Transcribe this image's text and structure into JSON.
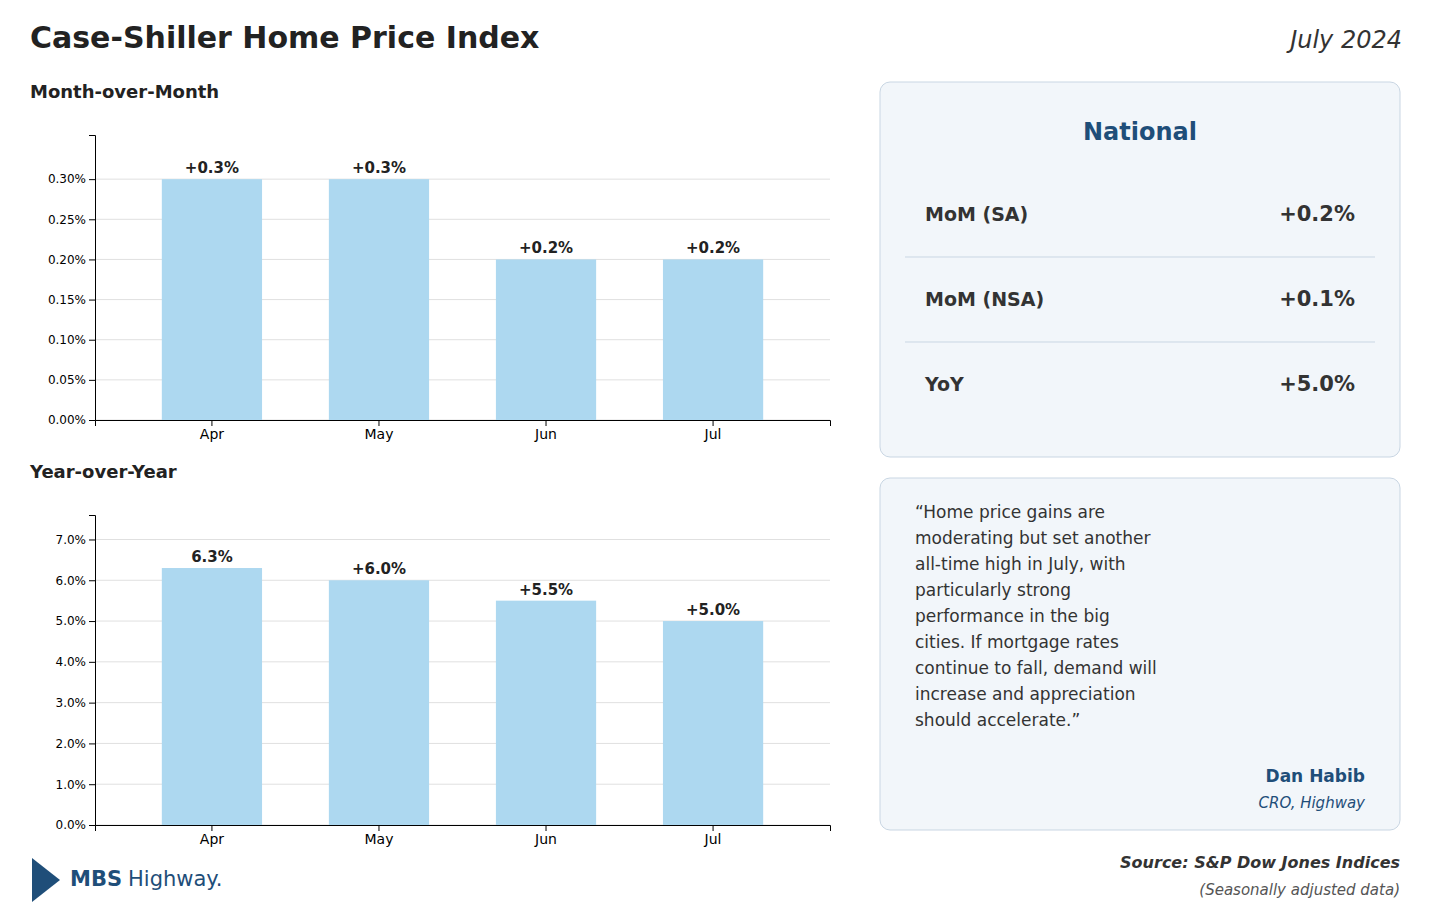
{
  "title": "Case-Shiller Home Price Index",
  "subtitle": "July 2024",
  "annotations": [
    "National",
    "MoM (SA)",
    "+0.2%",
    "MoM (NSA)",
    "+0.1%",
    "YoY",
    "+5.0%",
    "“Home price gains are\nmoderating but set another\nall-time high in July, with\nparticularly strong\nperformance in the big\ncities. If mortgage rates\ncontinue to fall, demand will\nincrease and appreciation\nshould accelerate.”",
    "Dan Habib",
    "CRO, Highway",
    "Source: S&P Dow Jones Indices",
    "(Seasonally adjusted data)",
    "MBS",
    "Highway."
  ],
  "chart_data": [
    {
      "type": "bar",
      "title": "Month-over-Month",
      "categories": [
        "Apr",
        "May",
        "Jun",
        "Jul"
      ],
      "values": [
        0.003,
        0.003,
        0.002,
        0.002
      ],
      "value_labels": [
        "+0.3%",
        "+0.3%",
        "+0.2%",
        "+0.2%"
      ],
      "data_labels": true,
      "color": "#add8f0",
      "ylim": [
        0,
        0.00355
      ],
      "yticks": [
        {
          "value": 0.0,
          "label": "0.00%"
        },
        {
          "value": 0.0005,
          "label": "0.05%"
        },
        {
          "value": 0.001,
          "label": "0.10%"
        },
        {
          "value": 0.0015,
          "label": "0.15%"
        },
        {
          "value": 0.002,
          "label": "0.20%"
        },
        {
          "value": 0.0025,
          "label": "0.25%"
        },
        {
          "value": 0.003,
          "label": "0.30%"
        }
      ],
      "grid": true
    },
    {
      "type": "bar",
      "title": "Year-over-Year",
      "categories": [
        "Apr",
        "May",
        "Jun",
        "Jul"
      ],
      "values": [
        0.063,
        0.06,
        0.055,
        0.05
      ],
      "value_labels": [
        "6.3%",
        "+6.0%",
        "+5.5%",
        "+5.0%"
      ],
      "data_labels": true,
      "color": "#add8f0",
      "ylim": [
        0,
        0.076
      ],
      "yticks": [
        {
          "value": 0.0,
          "label": "0.0%"
        },
        {
          "value": 0.01,
          "label": "1.0%"
        },
        {
          "value": 0.02,
          "label": "2.0%"
        },
        {
          "value": 0.03,
          "label": "3.0%"
        },
        {
          "value": 0.04,
          "label": "4.0%"
        },
        {
          "value": 0.05,
          "label": "5.0%"
        },
        {
          "value": 0.06,
          "label": "6.0%"
        },
        {
          "value": 0.07,
          "label": "7.0%"
        }
      ],
      "grid": true
    }
  ]
}
